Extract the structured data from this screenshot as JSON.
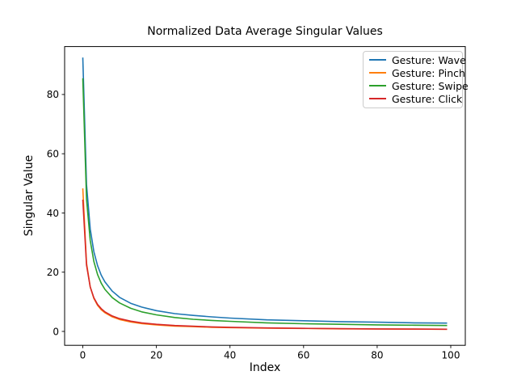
{
  "figure": {
    "background": "#ffffff"
  },
  "chart_data": {
    "type": "line",
    "title": "Normalized Data Average Singular Values",
    "xlabel": "Index",
    "ylabel": "Singular Value",
    "xlim": [
      -4.95,
      103.95
    ],
    "ylim": [
      -4.7,
      96.2
    ],
    "xticks": [
      0,
      20,
      40,
      60,
      80,
      100
    ],
    "yticks": [
      0,
      20,
      40,
      60,
      80
    ],
    "grid": false,
    "legend_position": "upper right",
    "x": [
      0,
      1,
      2,
      3,
      4,
      5,
      6,
      8,
      10,
      13,
      16,
      20,
      25,
      30,
      35,
      40,
      50,
      60,
      70,
      80,
      90,
      99
    ],
    "series": [
      {
        "name": "Gesture: Wave",
        "color": "#1f77b4",
        "values": [
          92.5,
          49.6,
          34.6,
          26.9,
          22.2,
          19.0,
          16.7,
          13.6,
          11.5,
          9.5,
          8.2,
          7.0,
          6.0,
          5.4,
          4.9,
          4.5,
          3.9,
          3.6,
          3.3,
          3.1,
          2.9,
          2.8
        ]
      },
      {
        "name": "Gesture: Pinch",
        "color": "#ff7f0e",
        "values": [
          48.3,
          23.1,
          15.0,
          11.1,
          8.8,
          7.3,
          6.3,
          4.9,
          4.0,
          3.2,
          2.65,
          2.2,
          1.8,
          1.6,
          1.4,
          1.27,
          1.1,
          1.0,
          0.88,
          0.82,
          0.77,
          0.73
        ]
      },
      {
        "name": "Gesture: Swipe",
        "color": "#2ca02c",
        "values": [
          85.5,
          44.7,
          30.7,
          23.6,
          19.2,
          16.3,
          14.2,
          11.4,
          9.6,
          7.8,
          6.6,
          5.6,
          4.7,
          4.1,
          3.7,
          3.4,
          2.9,
          2.6,
          2.4,
          2.2,
          2.1,
          2.0
        ]
      },
      {
        "name": "Gesture: Click",
        "color": "#d62728",
        "values": [
          44.5,
          22.4,
          15.0,
          11.35,
          9.1,
          7.7,
          6.6,
          5.2,
          4.3,
          3.45,
          2.9,
          2.4,
          2.0,
          1.73,
          1.53,
          1.38,
          1.17,
          1.02,
          0.92,
          0.85,
          0.79,
          0.74
        ]
      }
    ]
  }
}
